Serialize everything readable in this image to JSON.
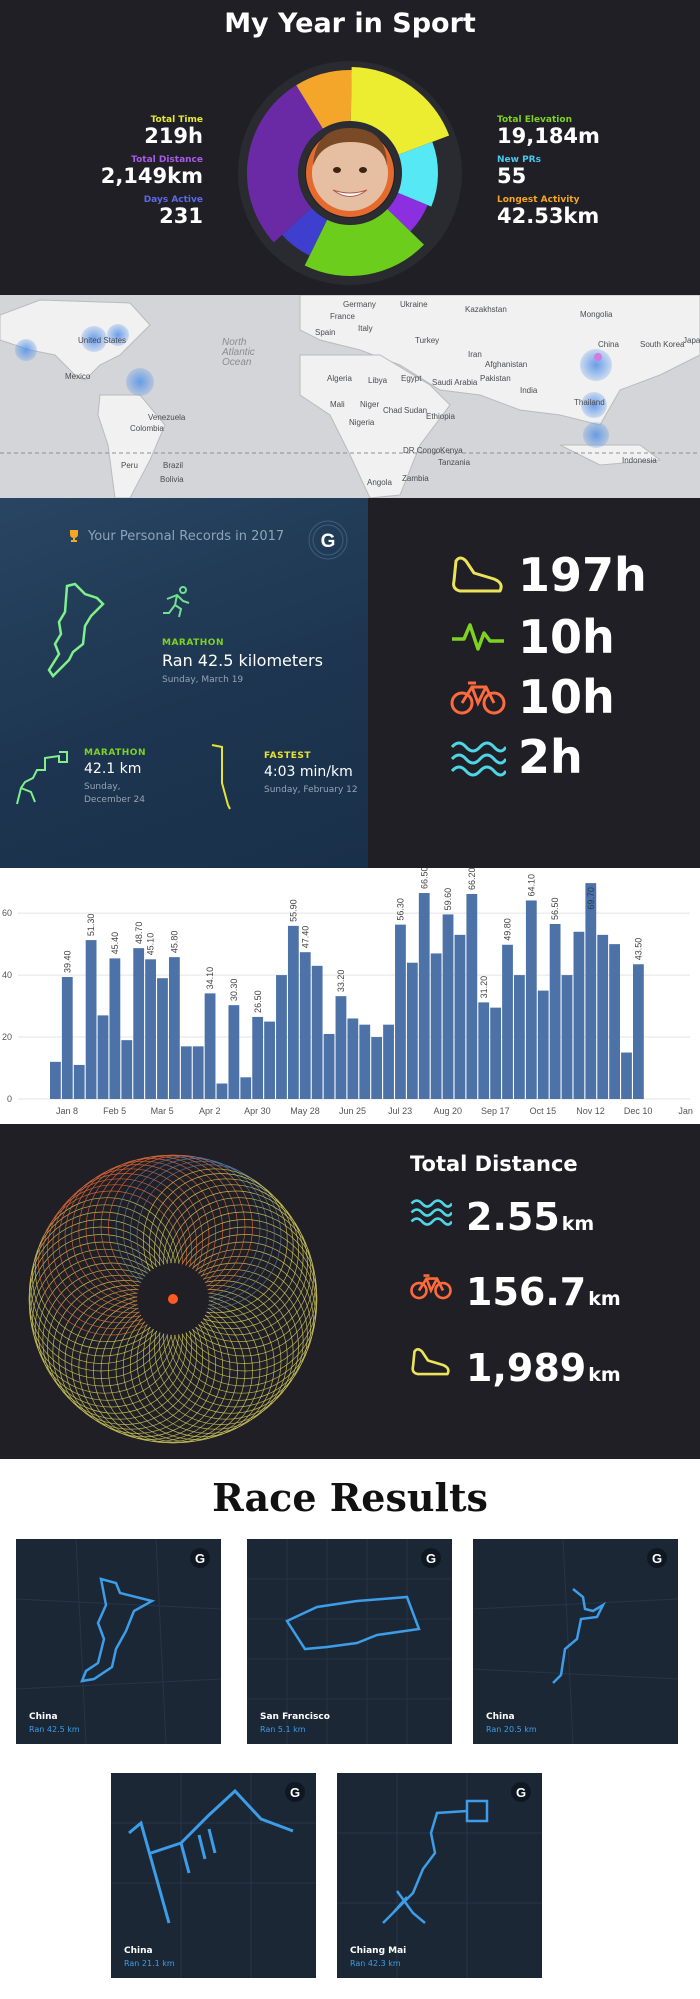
{
  "header": {
    "title": "My Year in Sport"
  },
  "stats_left": [
    {
      "label": "Total Time",
      "value": "219h",
      "color": "#e6e832"
    },
    {
      "label": "Total Distance",
      "value": "2,149km",
      "color": "#a75ce8"
    },
    {
      "label": "Days Active",
      "value": "231",
      "color": "#5c68e8"
    }
  ],
  "stats_right": [
    {
      "label": "Total Elevation",
      "value": "19,184m",
      "color": "#7ed321"
    },
    {
      "label": "New PRs",
      "value": "55",
      "color": "#48c8f0"
    },
    {
      "label": "Longest Activity",
      "value": "42.53km",
      "color": "#f5a623"
    }
  ],
  "donut_segments": [
    {
      "color": "#f4a62a",
      "fraction": 0.09
    },
    {
      "color": "#ecec30",
      "fraction": 0.19
    },
    {
      "color": "#56e8f4",
      "fraction": 0.12
    },
    {
      "color": "#8b2fe0",
      "fraction": 0.06
    },
    {
      "color": "#6ccd1d",
      "fraction": 0.2
    },
    {
      "color": "#3f3fcf",
      "fraction": 0.06
    },
    {
      "color": "#6a2aa5",
      "fraction": 0.28
    }
  ],
  "map": {
    "labels": [
      "Germany",
      "Ukraine",
      "Kazakhstan",
      "Mongolia",
      "France",
      "Italy",
      "Spain",
      "Turkey",
      "China",
      "South Korea",
      "Japan",
      "United States",
      "North",
      "Atlantic",
      "Ocean",
      "Iran",
      "Afghanistan",
      "Pakistan",
      "Mexico",
      "Algeria",
      "Libya",
      "Egypt",
      "Saudi Arabia",
      "India",
      "Thailand",
      "Mali",
      "Niger",
      "Chad",
      "Sudan",
      "Ethiopia",
      "Nigeria",
      "Venezuela",
      "Colombia",
      "DR Congo",
      "Kenya",
      "Tanzania",
      "Indonesia",
      "Peru",
      "Brazil",
      "Bolivia",
      "Angola",
      "Zambia"
    ]
  },
  "records": {
    "header": "Your Personal Records in 2017",
    "items": [
      {
        "kind": "MARATHON",
        "value": "Ran 42.5 kilometers",
        "date": "Sunday, March 19",
        "kind_color": "#7ed321"
      },
      {
        "kind": "MARATHON",
        "value": "42.1 km",
        "date": "Sunday,",
        "date2": "December 24",
        "kind_color": "#7ed321"
      },
      {
        "kind": "FASTEST",
        "value": "4:03 min/km",
        "date": "Sunday, February 12",
        "kind_color": "#e8e233"
      }
    ]
  },
  "hours": [
    {
      "icon": "running-shoe-icon",
      "value": "197h",
      "color": "#ece35a"
    },
    {
      "icon": "activity-pulse-icon",
      "value": "10h",
      "color": "#7ed321"
    },
    {
      "icon": "bicycle-icon",
      "value": "10h",
      "color": "#ff6a3c"
    },
    {
      "icon": "swim-waves-icon",
      "value": "2h",
      "color": "#4fd6e6"
    }
  ],
  "chart_data": {
    "type": "bar",
    "xticks": [
      "Jan 8",
      "Feb 5",
      "Mar 5",
      "Apr 2",
      "Apr 30",
      "May 28",
      "Jun 25",
      "Jul 23",
      "Aug 20",
      "Sep 17",
      "Oct 15",
      "Nov 12",
      "Dec 10",
      "Jan"
    ],
    "yticks": [
      "0",
      "20",
      "40",
      "60"
    ],
    "ylim": [
      0,
      72
    ],
    "values": [
      12,
      39.4,
      11,
      51.3,
      27,
      45.4,
      19,
      48.7,
      45.1,
      39,
      45.8,
      17,
      17,
      34.1,
      5,
      30.3,
      7,
      26.5,
      25,
      40,
      55.9,
      47.4,
      43,
      21,
      33.2,
      26,
      24,
      20,
      24,
      56.3,
      44,
      66.5,
      47,
      59.6,
      53,
      66.2,
      31.2,
      29.5,
      49.8,
      40,
      64.1,
      35,
      56.5,
      40,
      54,
      69.7,
      53,
      50,
      15,
      43.5
    ],
    "labels": {
      "1": "39.40",
      "3": "51.30",
      "5": "45.40",
      "7": "48.70",
      "8": "45.10",
      "10": "45.80",
      "13": "34.10",
      "15": "30.30",
      "17": "26.50",
      "20": "55.90",
      "21": "47.40",
      "24": "33.20",
      "29": "56.30",
      "31": "66.50",
      "33": "59.60",
      "35": "66.20",
      "36": "31.20",
      "38": "49.80",
      "40": "64.10",
      "42": "56.50",
      "45": "69.70",
      "49": "43.50"
    }
  },
  "distance": {
    "title": "Total Distance",
    "rows": [
      {
        "icon": "swim-waves-icon",
        "value": "2.55",
        "unit": "km",
        "color": "#4fd6e6"
      },
      {
        "icon": "bicycle-icon",
        "value": "156.7",
        "unit": "km",
        "color": "#ff6a3c"
      },
      {
        "icon": "running-shoe-icon",
        "value": "1,989",
        "unit": "km",
        "color": "#ece35a"
      }
    ]
  },
  "races": {
    "title": "Race Results",
    "cards": [
      {
        "city": "China",
        "dist": "Ran 42.5 km"
      },
      {
        "city": "San Francisco",
        "dist": "Ran 5.1 km"
      },
      {
        "city": "China",
        "dist": "Ran 20.5 km"
      },
      {
        "city": "China",
        "dist": "Ran 21.1 km"
      },
      {
        "city": "Chiang Mai",
        "dist": "Ran 42.3 km"
      }
    ]
  }
}
